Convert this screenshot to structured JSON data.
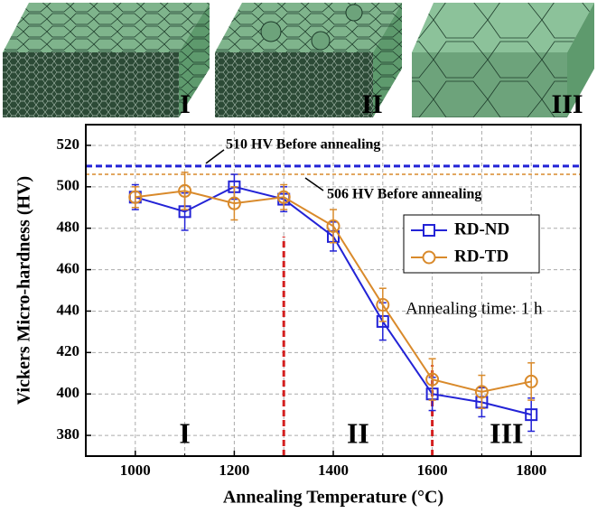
{
  "images": [
    {
      "label": "I"
    },
    {
      "label": "II"
    },
    {
      "label": "III"
    }
  ],
  "chart_data": {
    "type": "line",
    "xlabel": "Annealing Temperature (°C)",
    "ylabel": "Vickers Micro-hardness (HV)",
    "x": [
      1000,
      1100,
      1200,
      1300,
      1400,
      1500,
      1600,
      1700,
      1800
    ],
    "series": [
      {
        "name": "RD-ND",
        "color": "#2323d6",
        "marker": "square",
        "values": [
          495,
          488,
          500,
          494,
          476,
          435,
          400,
          396,
          390
        ],
        "errors": [
          6,
          9,
          6,
          6,
          7,
          9,
          8,
          7,
          8
        ]
      },
      {
        "name": "RD-TD",
        "color": "#d98a2b",
        "marker": "circle",
        "values": [
          495,
          498,
          492,
          495,
          481,
          443,
          407,
          401,
          406
        ],
        "errors": [
          5,
          9,
          8,
          6,
          8,
          8,
          10,
          8,
          9
        ]
      }
    ],
    "hlines": [
      {
        "value": 510,
        "color": "#2323d6",
        "label": "510 HV Before annealing"
      },
      {
        "value": 506,
        "color": "#d98a2b",
        "label": "506 HV Before annealing"
      }
    ],
    "dividers": [
      {
        "x": 1300,
        "y_end": 476
      },
      {
        "x": 1600,
        "y_end": 414
      }
    ],
    "divider_color": "#d42020",
    "regions": [
      "I",
      "II",
      "III"
    ],
    "annotation": "Annealing time: 1 h",
    "xlim": [
      900,
      1900
    ],
    "ylim": [
      370,
      530
    ],
    "xticks": [
      1000,
      1200,
      1400,
      1600,
      1800
    ],
    "x_minor_ticks": [
      1100,
      1300,
      1500,
      1700
    ],
    "yticks": [
      380,
      400,
      420,
      440,
      460,
      480,
      500,
      520
    ],
    "grid": true,
    "legend": "right"
  }
}
